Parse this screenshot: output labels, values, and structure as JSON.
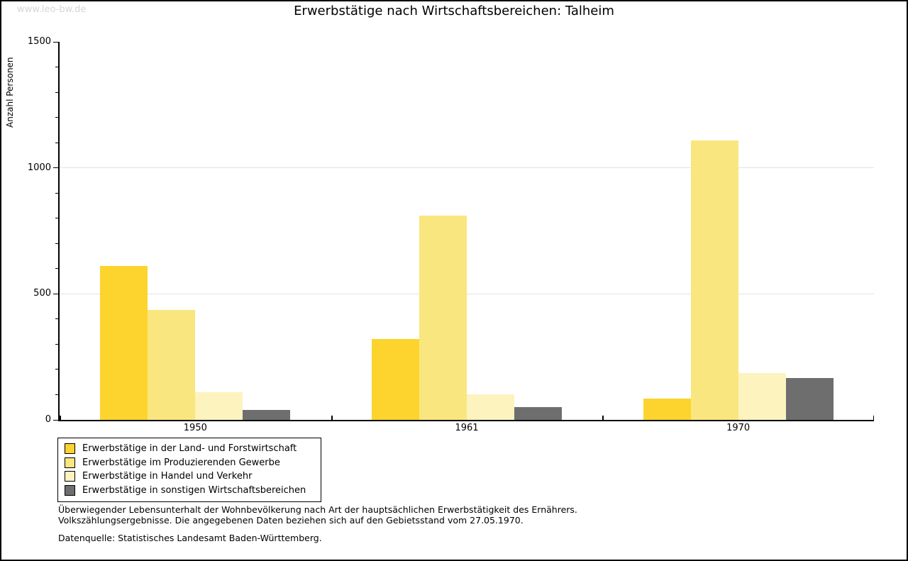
{
  "watermark": "www.leo-bw.de",
  "title": "Erwerbstätige nach Wirtschaftsbereichen: Talheim",
  "chart_data": {
    "type": "bar",
    "title": "Erwerbstätige nach Wirtschaftsbereichen: Talheim",
    "xlabel": "",
    "ylabel": "Anzahl Personen",
    "categories": [
      "1950",
      "1961",
      "1970"
    ],
    "series": [
      {
        "name": "Erwerbstätige in der Land- und Forstwirtschaft",
        "color": "#FCD42D",
        "values": [
          610,
          320,
          85
        ]
      },
      {
        "name": "Erwerbstätige im Produzierenden Gewerbe",
        "color": "#FAE67F",
        "values": [
          435,
          810,
          1110
        ]
      },
      {
        "name": "Erwerbstätige in Handel und Verkehr",
        "color": "#FCF3BF",
        "values": [
          110,
          100,
          185
        ]
      },
      {
        "name": "Erwerbstätige in sonstigen Wirtschaftsbereichen",
        "color": "#6E6E6E",
        "values": [
          40,
          50,
          165
        ]
      }
    ],
    "ylim": [
      0,
      1500
    ],
    "yticks_major": [
      0,
      500,
      1000,
      1500
    ],
    "ytick_minor_step": 100,
    "gridlines_at": [
      500,
      1000
    ],
    "grid": true,
    "legend_position": "bottom-left"
  },
  "footer": {
    "note_line1": "Überwiegender Lebensunterhalt der Wohnbevölkerung nach Art der hauptsächlichen Erwerbstätigkeit des Ernährers.",
    "note_line2": "Volkszählungsergebnisse. Die angegebenen Daten beziehen sich auf den Gebietsstand vom 27.05.1970.",
    "source": "Datenquelle: Statistisches Landesamt Baden-Württemberg."
  },
  "colors": {
    "axis": "#000000",
    "gridline": "#e2e2e2",
    "watermark": "#d6d6d6",
    "background": "#ffffff"
  }
}
